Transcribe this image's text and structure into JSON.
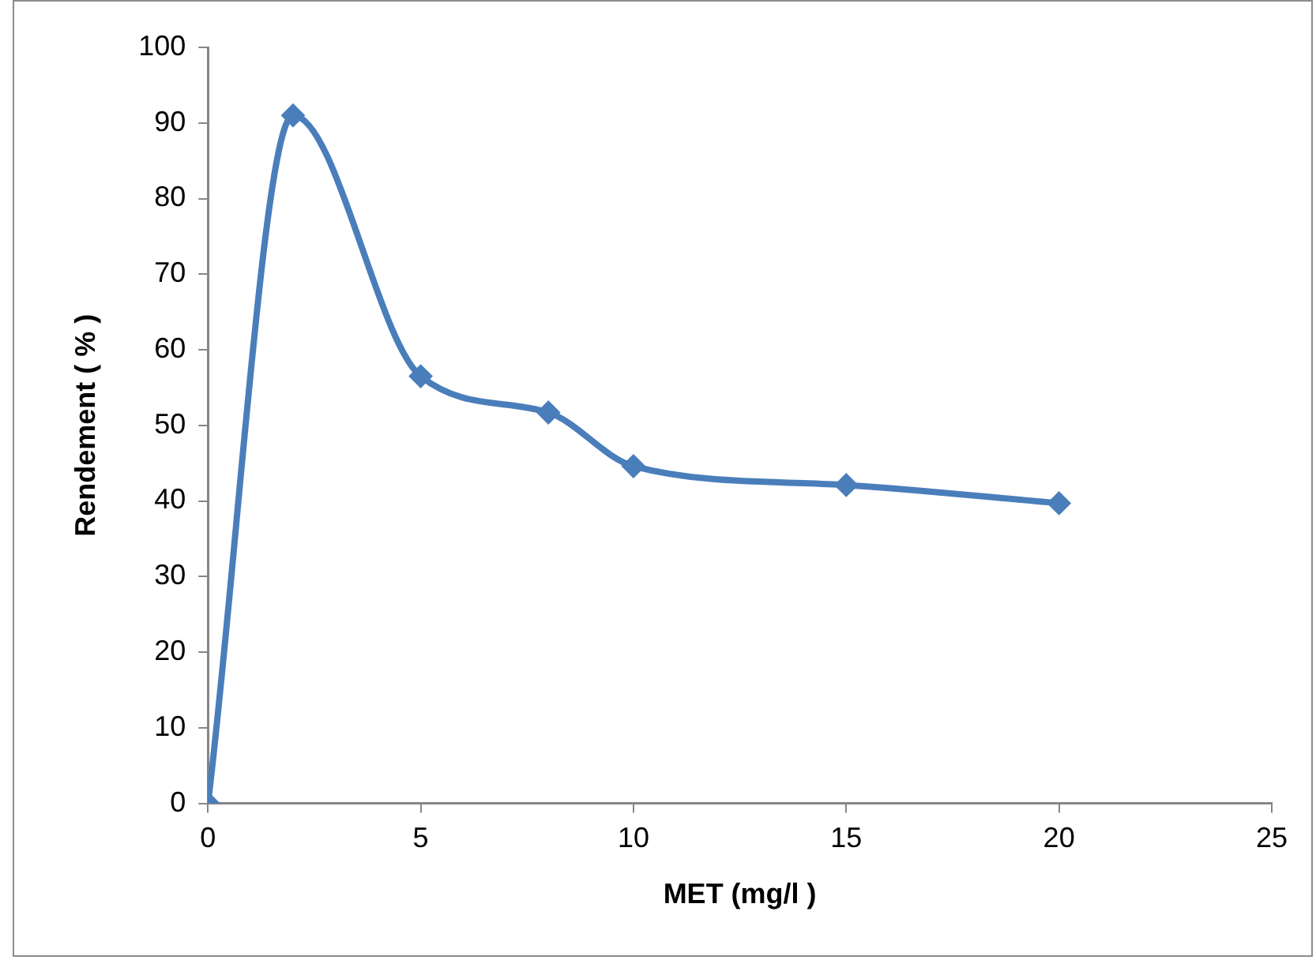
{
  "chart_data": {
    "type": "line",
    "xlabel": "MET (mg/l )",
    "ylabel": "Rendement ( % )",
    "x": [
      0,
      2,
      5,
      8,
      10,
      15,
      20
    ],
    "series": [
      {
        "color": "#4a7ebb",
        "values": [
          0,
          91,
          56.5,
          51.7,
          44.6,
          42.1,
          39.7
        ]
      }
    ],
    "xlim": [
      0,
      25
    ],
    "xticks": [
      0,
      5,
      10,
      15,
      20,
      25
    ],
    "ylim": [
      0,
      100
    ],
    "yticks": [
      0,
      10,
      20,
      30,
      40,
      50,
      60,
      70,
      80,
      90,
      100
    ],
    "grid": false,
    "legend": false,
    "marker": "diamond",
    "line_style": "solid"
  }
}
